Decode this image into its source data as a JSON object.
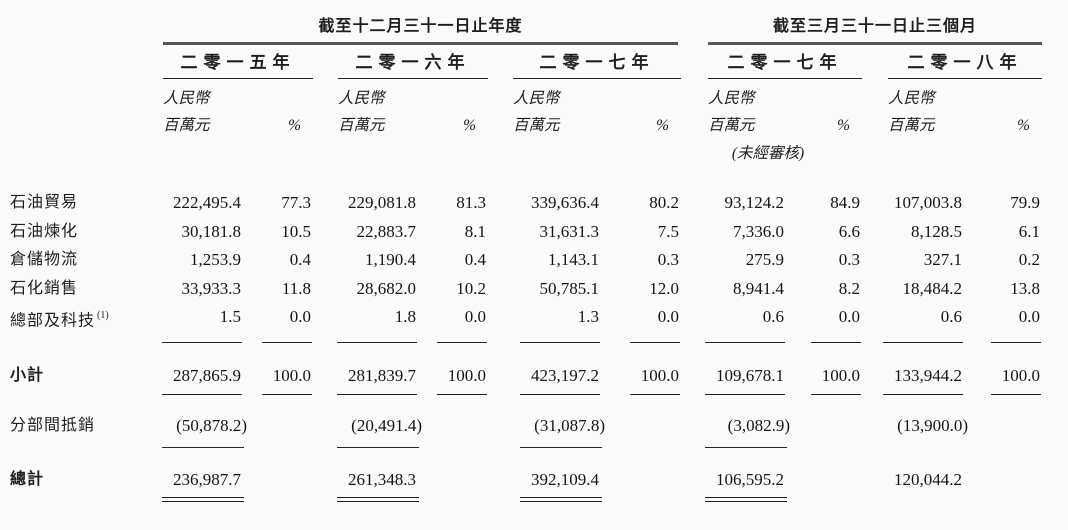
{
  "table": {
    "section_titles": [
      "截至十二月三十一日止年度",
      "截至三月三十一日止三個月"
    ],
    "year_columns": [
      "二零一五年",
      "二零一六年",
      "二零一七年",
      "二零一七年",
      "二零一八年"
    ],
    "unit_currency": "人民幣",
    "unit_scale": "百萬元",
    "percent_label": "%",
    "unaudited_note": "(未經審核)",
    "rows": [
      {
        "kind": "data",
        "label": "石油貿易",
        "cells": [
          "222,495.4",
          "77.3",
          "229,081.8",
          "81.3",
          "339,636.4",
          "80.2",
          "93,124.2",
          "84.9",
          "107,003.8",
          "79.9"
        ],
        "rule_cols": []
      },
      {
        "kind": "data",
        "label": "石油煉化",
        "cells": [
          "30,181.8",
          "10.5",
          "22,883.7",
          "8.1",
          "31,631.3",
          "7.5",
          "7,336.0",
          "6.6",
          "8,128.5",
          "6.1"
        ],
        "rule_cols": []
      },
      {
        "kind": "data",
        "label": "倉儲物流",
        "cells": [
          "1,253.9",
          "0.4",
          "1,190.4",
          "0.4",
          "1,143.1",
          "0.3",
          "275.9",
          "0.3",
          "327.1",
          "0.2"
        ],
        "rule_cols": []
      },
      {
        "kind": "data",
        "label": "石化銷售",
        "cells": [
          "33,933.3",
          "11.8",
          "28,682.0",
          "10.2",
          "50,785.1",
          "12.0",
          "8,941.4",
          "8.2",
          "18,484.2",
          "13.8"
        ],
        "rule_cols": []
      },
      {
        "kind": "data-ruled",
        "label": "總部及科技",
        "footnote": "(1)",
        "cells": [
          "1.5",
          "0.0",
          "1.8",
          "0.0",
          "1.3",
          "0.0",
          "0.6",
          "0.0",
          "0.6",
          "0.0"
        ],
        "rule_cols": [
          0,
          1,
          2,
          3,
          4,
          5,
          6,
          7,
          8,
          9
        ]
      },
      {
        "kind": "subtotal",
        "label": "小計",
        "cells": [
          "287,865.9",
          "100.0",
          "281,839.7",
          "100.0",
          "423,197.2",
          "100.0",
          "109,678.1",
          "100.0",
          "133,944.2",
          "100.0"
        ],
        "rule_cols": [
          0,
          1,
          2,
          3,
          4,
          5,
          6,
          7,
          8,
          9
        ]
      },
      {
        "kind": "elimination",
        "label": "分部間抵銷",
        "cells": [
          "(50,878.2)",
          "",
          "(20,491.4)",
          "",
          "(31,087.8)",
          "",
          "(3,082.9)",
          "",
          "(13,900.0)",
          ""
        ],
        "rule_cols": [
          0,
          2,
          4,
          6
        ]
      },
      {
        "kind": "total",
        "label": "總計",
        "rule_style": "double",
        "cells": [
          "236,987.7",
          "",
          "261,348.3",
          "",
          "392,109.4",
          "",
          "106,595.2",
          "",
          "120,044.2",
          ""
        ],
        "rule_cols": [
          0,
          2,
          4,
          6
        ]
      }
    ]
  }
}
